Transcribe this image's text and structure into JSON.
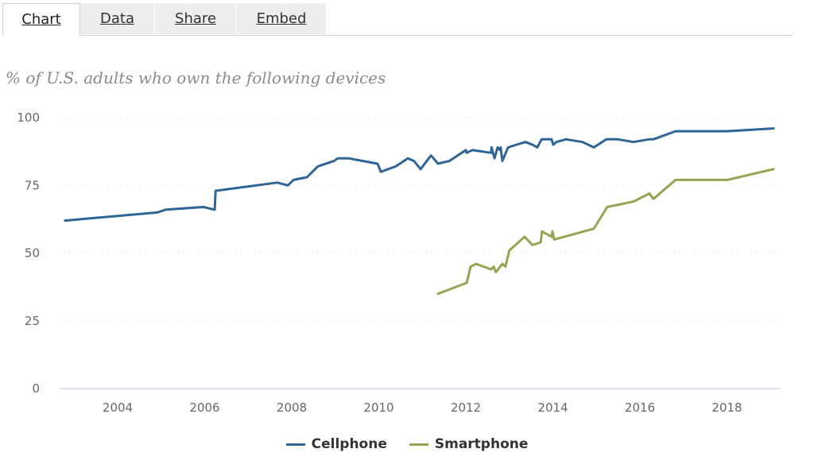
{
  "tabs": [
    {
      "label": "Chart",
      "active": true
    },
    {
      "label": "Data",
      "active": false
    },
    {
      "label": "Share",
      "active": false
    },
    {
      "label": "Embed",
      "active": false
    }
  ],
  "chart_data": {
    "type": "line",
    "title": "% of U.S. adults who own the following devices",
    "xlabel": "",
    "ylabel": "",
    "xlim": [
      2002.5,
      2019.2
    ],
    "ylim": [
      0,
      100
    ],
    "xticks": [
      2004,
      2006,
      2008,
      2010,
      2012,
      2014,
      2016,
      2018
    ],
    "yticks": [
      0,
      25,
      50,
      75,
      100
    ],
    "grid": true,
    "legend_position": "bottom-center",
    "series": [
      {
        "name": "Cellphone",
        "color": "#2f6596",
        "points": [
          [
            2002.79,
            62
          ],
          [
            2004.91,
            65
          ],
          [
            2005.1,
            66
          ],
          [
            2005.97,
            67
          ],
          [
            2006.23,
            66
          ],
          [
            2006.25,
            73
          ],
          [
            2007.67,
            76
          ],
          [
            2007.91,
            75
          ],
          [
            2008.04,
            77
          ],
          [
            2008.35,
            78
          ],
          [
            2008.6,
            82
          ],
          [
            2008.97,
            84
          ],
          [
            2009.06,
            85
          ],
          [
            2009.3,
            85
          ],
          [
            2009.97,
            83
          ],
          [
            2010.05,
            80
          ],
          [
            2010.39,
            82
          ],
          [
            2010.67,
            85
          ],
          [
            2010.81,
            84
          ],
          [
            2010.96,
            81
          ],
          [
            2011.2,
            86
          ],
          [
            2011.36,
            83
          ],
          [
            2011.62,
            84
          ],
          [
            2012.0,
            88
          ],
          [
            2012.02,
            87
          ],
          [
            2012.15,
            88
          ],
          [
            2012.58,
            87
          ],
          [
            2012.59,
            89
          ],
          [
            2012.66,
            85
          ],
          [
            2012.73,
            89
          ],
          [
            2012.79,
            88
          ],
          [
            2012.8,
            89
          ],
          [
            2012.84,
            84
          ],
          [
            2012.97,
            89
          ],
          [
            2013.37,
            91
          ],
          [
            2013.53,
            90
          ],
          [
            2013.64,
            89
          ],
          [
            2013.74,
            92
          ],
          [
            2013.97,
            92
          ],
          [
            2014.01,
            90
          ],
          [
            2014.08,
            91
          ],
          [
            2014.3,
            92
          ],
          [
            2014.68,
            91
          ],
          [
            2014.94,
            89
          ],
          [
            2015.23,
            92
          ],
          [
            2015.49,
            92
          ],
          [
            2015.85,
            91
          ],
          [
            2016.22,
            92
          ],
          [
            2016.31,
            92
          ],
          [
            2016.82,
            95
          ],
          [
            2018.01,
            95
          ],
          [
            2019.07,
            96
          ]
        ]
      },
      {
        "name": "Smartphone",
        "color": "#98a253",
        "points": [
          [
            2011.36,
            35
          ],
          [
            2012.02,
            39
          ],
          [
            2012.11,
            45
          ],
          [
            2012.24,
            46
          ],
          [
            2012.58,
            44
          ],
          [
            2012.64,
            45
          ],
          [
            2012.69,
            43
          ],
          [
            2012.84,
            46
          ],
          [
            2012.91,
            45
          ],
          [
            2013.0,
            51
          ],
          [
            2013.35,
            56
          ],
          [
            2013.53,
            53
          ],
          [
            2013.72,
            54
          ],
          [
            2013.75,
            58
          ],
          [
            2013.97,
            56
          ],
          [
            2013.99,
            58
          ],
          [
            2014.03,
            55
          ],
          [
            2014.94,
            59
          ],
          [
            2015.25,
            67
          ],
          [
            2015.85,
            69
          ],
          [
            2016.22,
            72
          ],
          [
            2016.31,
            70
          ],
          [
            2016.82,
            77
          ],
          [
            2018.01,
            77
          ],
          [
            2019.07,
            81
          ]
        ]
      }
    ]
  }
}
